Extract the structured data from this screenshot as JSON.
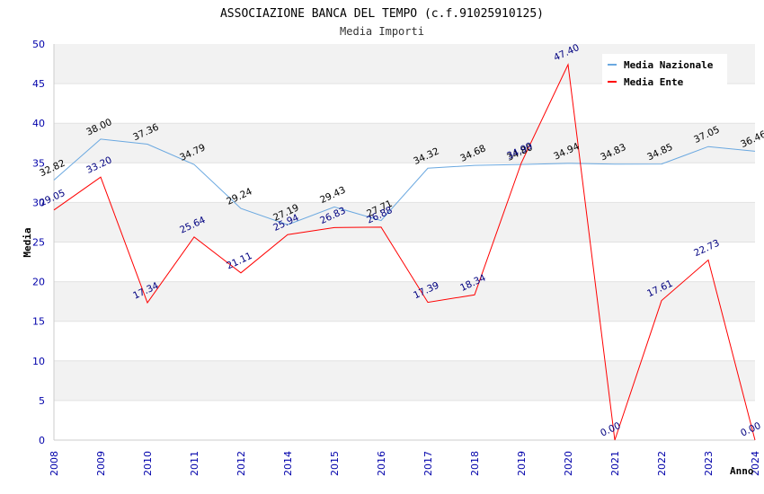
{
  "chart_data": {
    "type": "line",
    "title": "ASSOCIAZIONE BANCA DEL TEMPO (c.f.91025910125)",
    "subtitle": "Media Importi",
    "xlabel": "Anno",
    "ylabel": "Media",
    "ylim": [
      0,
      50
    ],
    "yticks": [
      "0",
      "5",
      "10",
      "15",
      "20",
      "25",
      "30",
      "35",
      "40",
      "45",
      "50"
    ],
    "categories": [
      "2008",
      "2009",
      "2010",
      "2011",
      "2012",
      "2014",
      "2015",
      "2016",
      "2017",
      "2018",
      "2019",
      "2020",
      "2021",
      "2022",
      "2023",
      "2024"
    ],
    "grid": "horizontal bands",
    "legend_position": "top-right",
    "series": [
      {
        "name": "Media Nazionale",
        "color": "#6aa8e0",
        "label_color": "#000000",
        "values": [
          32.82,
          38.0,
          37.36,
          34.79,
          29.24,
          27.19,
          29.43,
          27.71,
          34.32,
          34.68,
          34.8,
          34.94,
          34.83,
          34.85,
          37.05,
          36.46
        ],
        "labels": [
          "32.82",
          "38.00",
          "37.36",
          "34.79",
          "29.24",
          "27.19",
          "29.43",
          "27.71",
          "34.32",
          "34.68",
          "34.80",
          "34.94",
          "34.83",
          "34.85",
          "37.05",
          "36.46"
        ]
      },
      {
        "name": "Media Ente",
        "color": "#ff0000",
        "label_color": "#000080",
        "values": [
          29.05,
          33.2,
          17.34,
          25.64,
          21.11,
          25.94,
          26.83,
          26.88,
          17.39,
          18.34,
          34.99,
          47.4,
          0.0,
          17.61,
          22.73,
          0.0
        ],
        "labels": [
          "29.05",
          "33.20",
          "17.34",
          "25.64",
          "21.11",
          "25.94",
          "26.83",
          "26.88",
          "17.39",
          "18.34",
          "34.99",
          "47.40",
          "0.00",
          "17.61",
          "22.73",
          "0.00"
        ]
      }
    ]
  }
}
